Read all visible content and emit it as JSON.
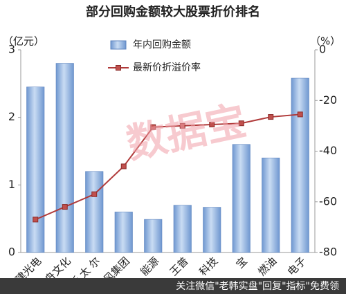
{
  "chart_data": {
    "type": "bar",
    "title": "部分回购金额较大股票折价排名",
    "y_label": "（亿元）",
    "y2_label": "（%）",
    "categories": [
      "联建光电",
      "天舟文化",
      "斯 太 尔",
      "暴风集团",
      "能源",
      "王普",
      "科技",
      "宝",
      "燃油",
      "电子"
    ],
    "series": [
      {
        "name": "年内回购金额",
        "type": "bar",
        "color": "#8fb4e3",
        "values": [
          2.45,
          2.8,
          1.2,
          0.6,
          0.49,
          0.7,
          0.67,
          1.6,
          1.4,
          2.58
        ]
      },
      {
        "name": "最新价折溢价率",
        "type": "line",
        "axis": "y2",
        "color": "#b03a3a",
        "values": [
          -67,
          -62,
          -57,
          -46,
          -30.5,
          -30,
          -29.5,
          -29,
          -26.5,
          -25.5
        ]
      }
    ],
    "ylim": [
      0,
      3
    ],
    "yticks": [
      0,
      1,
      2,
      3
    ],
    "y2lim": [
      -80,
      0
    ],
    "y2ticks": [
      0,
      -20,
      -40,
      -60,
      -80
    ],
    "watermark": "数据宝",
    "footer": "关注微信\"老韩实盘\"回复\"指标\"免费领"
  }
}
